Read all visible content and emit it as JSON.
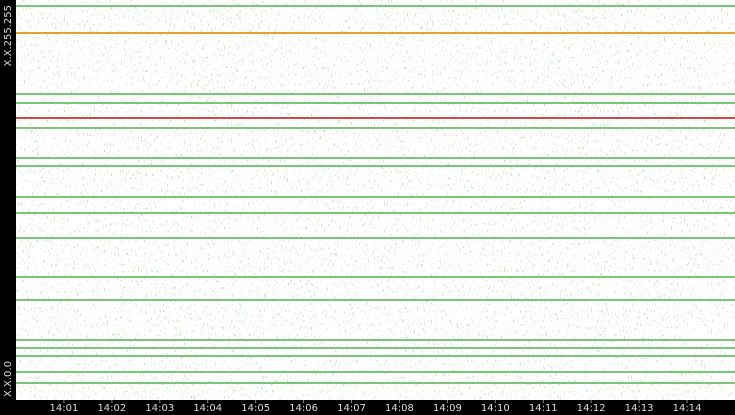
{
  "chart_data": {
    "type": "traffic",
    "xlim": [
      0,
      15
    ],
    "xticks": [
      {
        "value": 1,
        "label": "14:01"
      },
      {
        "value": 2,
        "label": "14:02"
      },
      {
        "value": 3,
        "label": "14:03"
      },
      {
        "value": 4,
        "label": "14:04"
      },
      {
        "value": 5,
        "label": "14:05"
      },
      {
        "value": 6,
        "label": "14:06"
      },
      {
        "value": 7,
        "label": "14:07"
      },
      {
        "value": 8,
        "label": "14:08"
      },
      {
        "value": 9,
        "label": "14:09"
      },
      {
        "value": 10,
        "label": "14:10"
      },
      {
        "value": 11,
        "label": "14:11"
      },
      {
        "value": 12,
        "label": "14:12"
      },
      {
        "value": 13,
        "label": "14:13"
      },
      {
        "value": 14,
        "label": "14:14"
      }
    ],
    "ylim": [
      0,
      65535
    ],
    "yticks": [
      {
        "value": 0,
        "label": "X.X.0.0"
      },
      {
        "value": 65535,
        "label": "X.X.255.255"
      }
    ],
    "color": "#7cc47a",
    "lines": [
      {
        "y": 64553,
        "color": "#7cc47a"
      },
      {
        "y": 60128,
        "color": "#e8a030"
      },
      {
        "y": 50135,
        "color": "#7cc47a"
      },
      {
        "y": 48660,
        "color": "#7cc47a"
      },
      {
        "y": 46202,
        "color": "#d04848"
      },
      {
        "y": 44564,
        "color": "#7cc47a"
      },
      {
        "y": 39649,
        "color": "#7cc47a"
      },
      {
        "y": 38339,
        "color": "#7cc47a"
      },
      {
        "y": 33260,
        "color": "#7cc47a"
      },
      {
        "y": 30638,
        "color": "#7cc47a"
      },
      {
        "y": 26542,
        "color": "#7cc47a"
      },
      {
        "y": 20152,
        "color": "#7cc47a"
      },
      {
        "y": 16384,
        "color": "#7cc47a"
      },
      {
        "y": 9830,
        "color": "#7cc47a"
      },
      {
        "y": 8520,
        "color": "#7cc47a"
      },
      {
        "y": 7209,
        "color": "#7cc47a"
      },
      {
        "y": 4588,
        "color": "#7cc47a"
      },
      {
        "y": 2785,
        "color": "#7cc47a"
      }
    ]
  }
}
